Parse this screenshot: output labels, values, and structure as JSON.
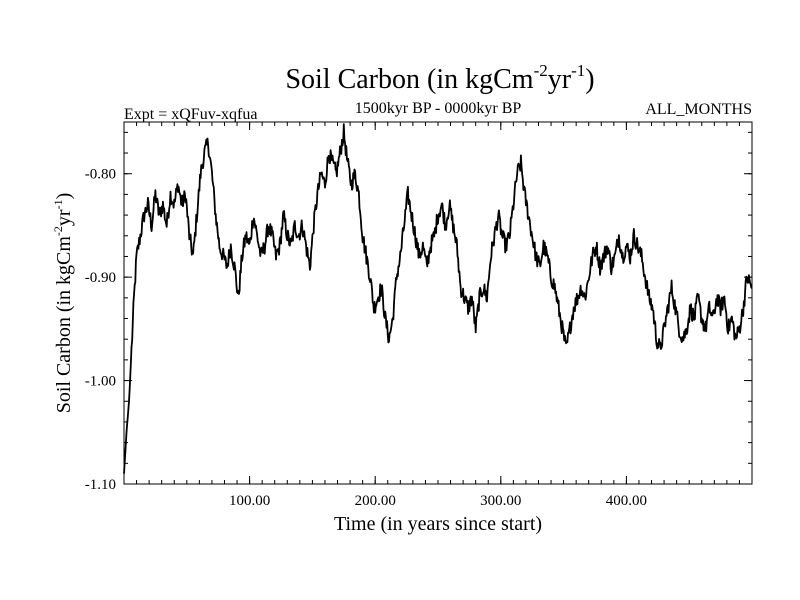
{
  "chart_data": {
    "type": "line",
    "title": "Soil Carbon (in kgCm",
    "title_exp1": "-2",
    "title_mid": "yr",
    "title_exp2": "-1",
    "title_end": ")",
    "subtitle_left": "Expt = xQFuv-xqfua",
    "subtitle_center": "1500kyr BP - 0000kyr BP",
    "subtitle_right": "ALL_MONTHS",
    "xlabel": "Time (in years since start)",
    "ylabel": "Soil Carbon (in kgCm",
    "ylabel_exp1": "-2",
    "ylabel_mid": "yr",
    "ylabel_exp2": "-1",
    "ylabel_end": ")",
    "xlim": [
      0,
      500
    ],
    "ylim": [
      -1.1,
      -0.75
    ],
    "x_ticks": [
      100,
      200,
      300,
      400
    ],
    "x_tick_labels": [
      "100.00",
      "200.00",
      "300.00",
      "400.00"
    ],
    "y_ticks": [
      -1.1,
      -1.0,
      -0.9,
      -0.8
    ],
    "y_tick_labels": [
      "-1.10",
      "-1.00",
      "-0.90",
      "-0.80"
    ],
    "series": [
      {
        "name": "Soil Carbon",
        "x": [
          0,
          2,
          4,
          6,
          8,
          10,
          13,
          16,
          19,
          22,
          25,
          28,
          31,
          34,
          37,
          40,
          43,
          46,
          49,
          52,
          55,
          58,
          61,
          64,
          67,
          70,
          73,
          76,
          79,
          82,
          85,
          88,
          91,
          94,
          97,
          100,
          103,
          106,
          109,
          112,
          115,
          118,
          121,
          124,
          127,
          130,
          133,
          136,
          139,
          142,
          145,
          148,
          151,
          154,
          157,
          160,
          163,
          166,
          169,
          172,
          175,
          178,
          181,
          184,
          187,
          190,
          193,
          196,
          199,
          202,
          205,
          208,
          211,
          214,
          217,
          220,
          223,
          226,
          229,
          232,
          235,
          238,
          241,
          244,
          247,
          250,
          253,
          256,
          259,
          262,
          265,
          268,
          271,
          274,
          277,
          280,
          283,
          286,
          289,
          292,
          295,
          298,
          301,
          304,
          307,
          310,
          313,
          316,
          319,
          322,
          325,
          328,
          331,
          334,
          337,
          340,
          343,
          346,
          349,
          352,
          355,
          358,
          361,
          364,
          367,
          370,
          373,
          376,
          379,
          382,
          385,
          388,
          391,
          394,
          397,
          400,
          403,
          406,
          409,
          412,
          415,
          418,
          421,
          424,
          427,
          430,
          433,
          436,
          439,
          442,
          445,
          448,
          451,
          454,
          457,
          460,
          463,
          466,
          469,
          472,
          475,
          478,
          481,
          484,
          487,
          490,
          493,
          496,
          500
        ],
        "y": [
          -1.09,
          -1.05,
          -1.02,
          -0.97,
          -0.92,
          -0.88,
          -0.86,
          -0.84,
          -0.83,
          -0.85,
          -0.82,
          -0.84,
          -0.83,
          -0.85,
          -0.82,
          -0.83,
          -0.81,
          -0.83,
          -0.82,
          -0.86,
          -0.88,
          -0.84,
          -0.8,
          -0.78,
          -0.77,
          -0.8,
          -0.84,
          -0.87,
          -0.88,
          -0.89,
          -0.87,
          -0.89,
          -0.92,
          -0.88,
          -0.86,
          -0.87,
          -0.84,
          -0.86,
          -0.88,
          -0.87,
          -0.85,
          -0.86,
          -0.88,
          -0.87,
          -0.84,
          -0.86,
          -0.87,
          -0.85,
          -0.86,
          -0.85,
          -0.87,
          -0.89,
          -0.85,
          -0.82,
          -0.8,
          -0.81,
          -0.78,
          -0.79,
          -0.8,
          -0.78,
          -0.76,
          -0.79,
          -0.81,
          -0.8,
          -0.82,
          -0.86,
          -0.88,
          -0.9,
          -0.93,
          -0.92,
          -0.91,
          -0.94,
          -0.96,
          -0.94,
          -0.9,
          -0.88,
          -0.85,
          -0.82,
          -0.84,
          -0.86,
          -0.88,
          -0.87,
          -0.89,
          -0.87,
          -0.86,
          -0.84,
          -0.83,
          -0.85,
          -0.83,
          -0.85,
          -0.87,
          -0.91,
          -0.92,
          -0.93,
          -0.92,
          -0.95,
          -0.92,
          -0.91,
          -0.92,
          -0.88,
          -0.86,
          -0.84,
          -0.86,
          -0.87,
          -0.86,
          -0.83,
          -0.8,
          -0.79,
          -0.82,
          -0.84,
          -0.86,
          -0.88,
          -0.89,
          -0.87,
          -0.88,
          -0.9,
          -0.91,
          -0.93,
          -0.95,
          -0.97,
          -0.95,
          -0.93,
          -0.92,
          -0.91,
          -0.92,
          -0.9,
          -0.88,
          -0.87,
          -0.89,
          -0.88,
          -0.87,
          -0.89,
          -0.88,
          -0.86,
          -0.88,
          -0.87,
          -0.88,
          -0.86,
          -0.87,
          -0.88,
          -0.9,
          -0.92,
          -0.93,
          -0.96,
          -0.97,
          -0.95,
          -0.93,
          -0.91,
          -0.93,
          -0.95,
          -0.96,
          -0.95,
          -0.93,
          -0.94,
          -0.92,
          -0.94,
          -0.95,
          -0.93,
          -0.94,
          -0.92,
          -0.93,
          -0.92,
          -0.95,
          -0.94,
          -0.96,
          -0.95,
          -0.93,
          -0.9,
          -0.91
        ]
      }
    ]
  }
}
